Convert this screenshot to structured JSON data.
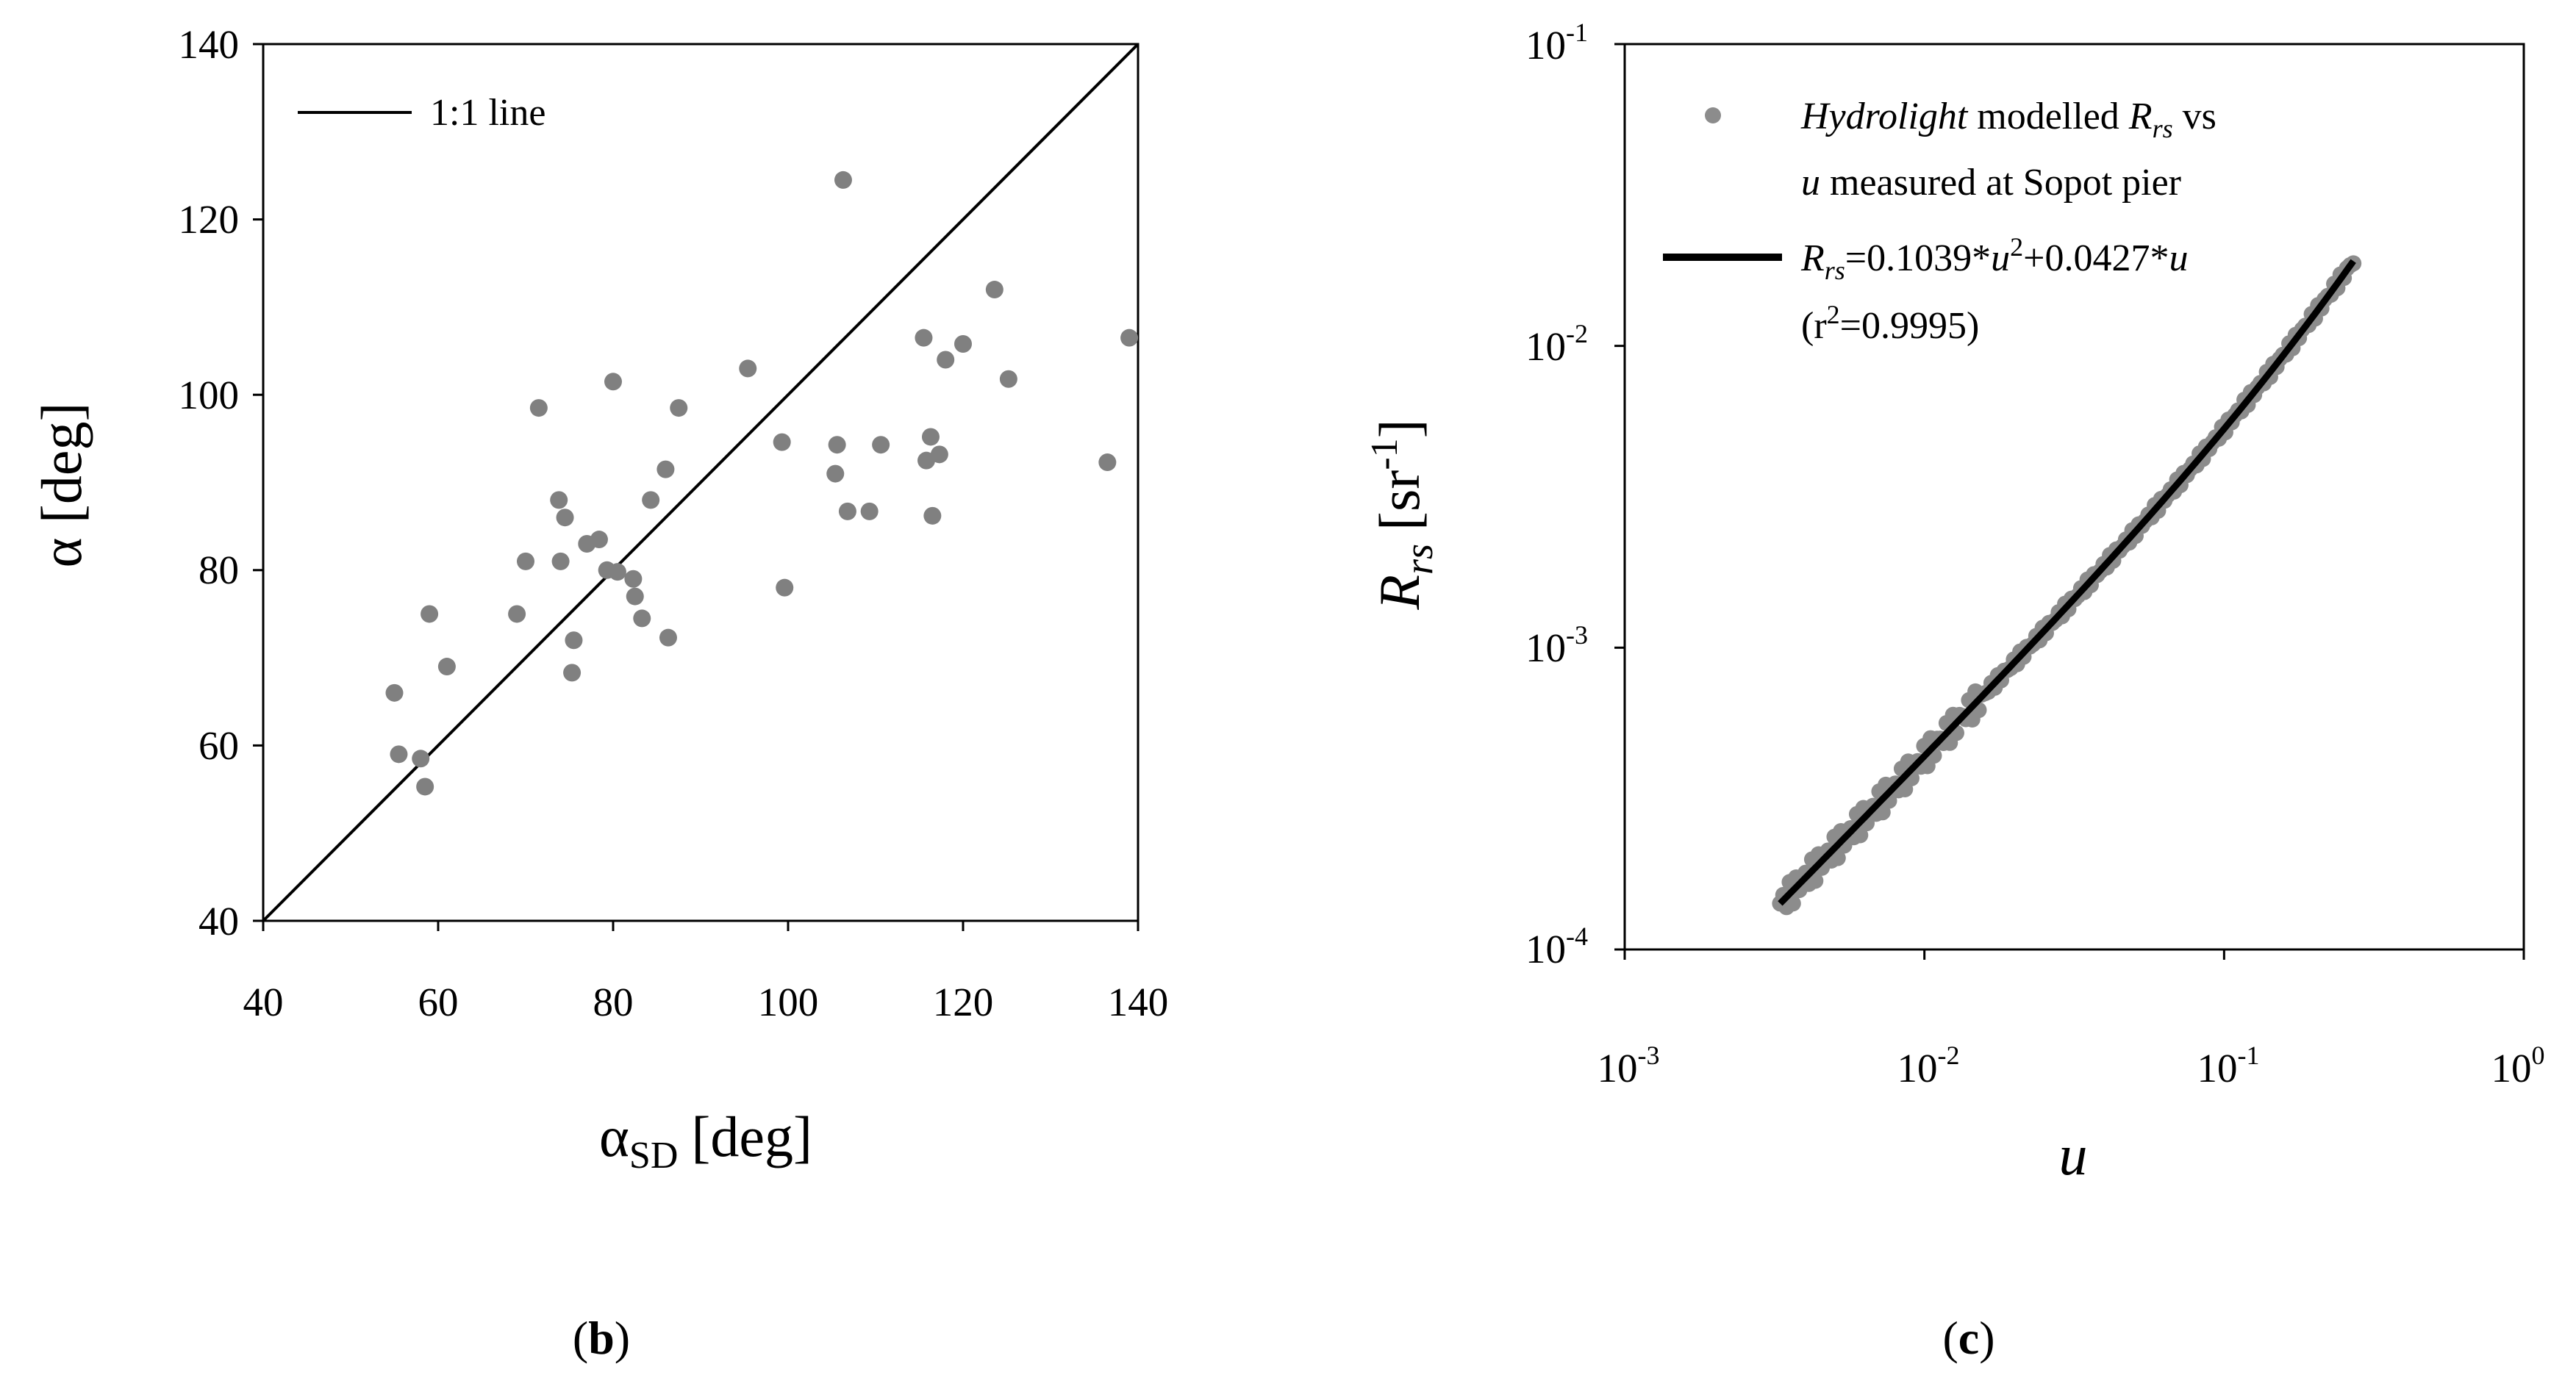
{
  "chart_data": [
    {
      "panel_label": {
        "open": "(",
        "letter": "b",
        "close": ")"
      },
      "type": "scatter",
      "xlabel": {
        "main": "α",
        "sub": "SD",
        "unit": "[deg]"
      },
      "ylabel": "α [deg]",
      "xlim": [
        40,
        140
      ],
      "ylim": [
        40,
        140
      ],
      "x_ticks": [
        "40",
        "60",
        "80",
        "100",
        "120",
        "140"
      ],
      "y_ticks": [
        "40",
        "60",
        "80",
        "100",
        "120",
        "140"
      ],
      "grid": false,
      "legend": {
        "position": "top-left",
        "entries": [
          "1:1 line"
        ]
      },
      "line": {
        "name": "1:1 line",
        "points": [
          [
            40,
            40
          ],
          [
            140,
            140
          ]
        ]
      },
      "series": [
        {
          "points": [
            [
              55,
              66
            ],
            [
              55.5,
              59
            ],
            [
              58,
              58.5
            ],
            [
              58.5,
              55.3
            ],
            [
              59,
              75
            ],
            [
              61,
              69
            ],
            [
              69,
              75
            ],
            [
              70,
              81
            ],
            [
              71.5,
              98.5
            ],
            [
              73.8,
              88
            ],
            [
              74,
              81
            ],
            [
              74.5,
              86
            ],
            [
              75.3,
              68.3
            ],
            [
              75.5,
              72
            ],
            [
              77,
              83
            ],
            [
              78.4,
              83.5
            ],
            [
              79.3,
              80
            ],
            [
              80,
              101.5
            ],
            [
              80.5,
              79.8
            ],
            [
              82.3,
              79
            ],
            [
              82.5,
              77
            ],
            [
              83.3,
              74.5
            ],
            [
              84.3,
              88
            ],
            [
              86,
              91.5
            ],
            [
              86.3,
              72.3
            ],
            [
              87.5,
              98.5
            ],
            [
              95.4,
              103
            ],
            [
              99.3,
              94.6
            ],
            [
              99.6,
              78
            ],
            [
              105.4,
              91
            ],
            [
              105.6,
              94.3
            ],
            [
              106.3,
              124.5
            ],
            [
              106.8,
              86.7
            ],
            [
              109.3,
              86.7
            ],
            [
              110.6,
              94.3
            ],
            [
              115.5,
              106.5
            ],
            [
              115.8,
              92.5
            ],
            [
              116.3,
              95.2
            ],
            [
              116.5,
              86.2
            ],
            [
              117.3,
              93.2
            ],
            [
              118,
              104
            ],
            [
              120,
              105.8
            ],
            [
              123.6,
              112
            ],
            [
              125.2,
              101.8
            ],
            [
              136.5,
              92.3
            ],
            [
              139,
              106.5
            ]
          ]
        }
      ],
      "colors": {
        "points": "#808080",
        "line": "#000000"
      }
    },
    {
      "panel_label": {
        "open": "(",
        "letter": "c",
        "close": ")"
      },
      "type": "scatter",
      "scale": "log-log",
      "xlabel": "u",
      "ylabel": {
        "main": "R",
        "sub": "rs",
        "unit_open": "[sr",
        "unit_sup": "-1",
        "unit_close": "]"
      },
      "xlim": [
        0.001,
        1
      ],
      "ylim": [
        0.0001,
        0.1
      ],
      "x_ticks": [
        {
          "base": "10",
          "exp": "-3"
        },
        {
          "base": "10",
          "exp": "-2"
        },
        {
          "base": "10",
          "exp": "-1"
        },
        {
          "base": "10",
          "exp": "0"
        }
      ],
      "y_ticks": [
        {
          "base": "10",
          "exp": "-4"
        },
        {
          "base": "10",
          "exp": "-3"
        },
        {
          "base": "10",
          "exp": "-2"
        },
        {
          "base": "10",
          "exp": "-1"
        }
      ],
      "grid": false,
      "legend": {
        "position": "top-left",
        "entry1_line1": {
          "italic": "Hydrolight",
          "text": " modelled ",
          "r": "R",
          "sub": "rs",
          "tail": " vs"
        },
        "entry1_line2": {
          "italic": "u",
          "text": " measured at Sopot pier"
        },
        "entry2_line1": {
          "r": "R",
          "sub": "rs",
          "eq1": "=0.1039*",
          "u1": "u",
          "sup": "2",
          "eq2": "+0.0427*",
          "u2": "u"
        },
        "entry2_line2": {
          "open": "(r",
          "sup": "2",
          "close": "=0.9995)"
        }
      },
      "series": [
        {
          "name": "Hydrolight modelled Rrs vs u measured at Sopot pier",
          "x_range": [
            0.0033,
            0.27
          ],
          "model": "0.1039*u^2+0.0427*u",
          "r2": 0.9995
        }
      ],
      "fit": {
        "a": 0.1039,
        "b": 0.0427
      },
      "colors": {
        "points": "#8c8c8c",
        "line": "#000000"
      }
    }
  ]
}
